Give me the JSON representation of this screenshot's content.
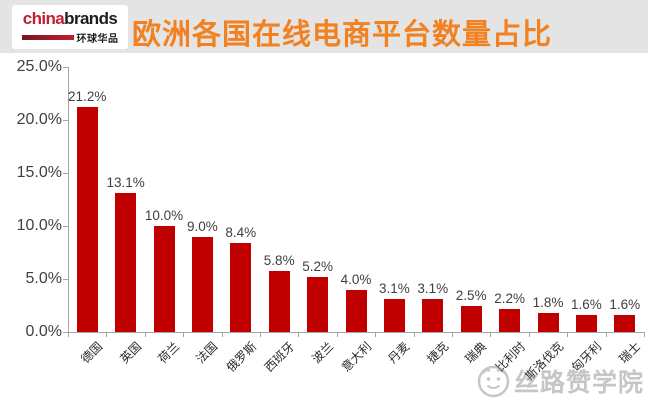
{
  "header": {
    "logo": {
      "brand_part1": "china",
      "brand_part2": "brands",
      "tagline": "环球华品"
    },
    "title": "欧洲各国在线电商平台数量占比"
  },
  "chart_data": {
    "type": "bar",
    "title": "欧洲各国在线电商平台数量占比",
    "categories": [
      "德国",
      "英国",
      "荷兰",
      "法国",
      "俄罗斯",
      "西班牙",
      "波兰",
      "意大利",
      "丹麦",
      "捷克",
      "瑞典",
      "比利时",
      "斯洛伐克",
      "匈牙利",
      "瑞士"
    ],
    "values": [
      21.2,
      13.1,
      10.0,
      9.0,
      8.4,
      5.8,
      5.2,
      4.0,
      3.1,
      3.1,
      2.5,
      2.2,
      1.8,
      1.6,
      1.6
    ],
    "value_labels": [
      "21.2%",
      "13.1%",
      "10.0%",
      "9.0%",
      "8.4%",
      "5.8%",
      "5.2%",
      "4.0%",
      "3.1%",
      "3.1%",
      "2.5%",
      "2.2%",
      "1.8%",
      "1.6%",
      "1.6%"
    ],
    "xlabel": "",
    "ylabel": "",
    "ylim": [
      0,
      25
    ],
    "y_ticks": [
      {
        "value": 0,
        "label": "0.0%"
      },
      {
        "value": 5,
        "label": "5.0%"
      },
      {
        "value": 10,
        "label": "10.0%"
      },
      {
        "value": 15,
        "label": "15.0%"
      },
      {
        "value": 20,
        "label": "20.0%"
      },
      {
        "value": 25,
        "label": "25.0%"
      }
    ],
    "grid": false,
    "legend": false,
    "bar_color": "#c00000"
  },
  "colors": {
    "bar": "#c00000",
    "title_orange": "#f18121",
    "logo_red": "#c02032",
    "header_background": "#e4e4e4",
    "axis_gray": "#a6a6a6",
    "label_text": "#404040"
  },
  "watermark": {
    "text": "丝路赞学院",
    "icon": "mascot-circle-logo"
  }
}
